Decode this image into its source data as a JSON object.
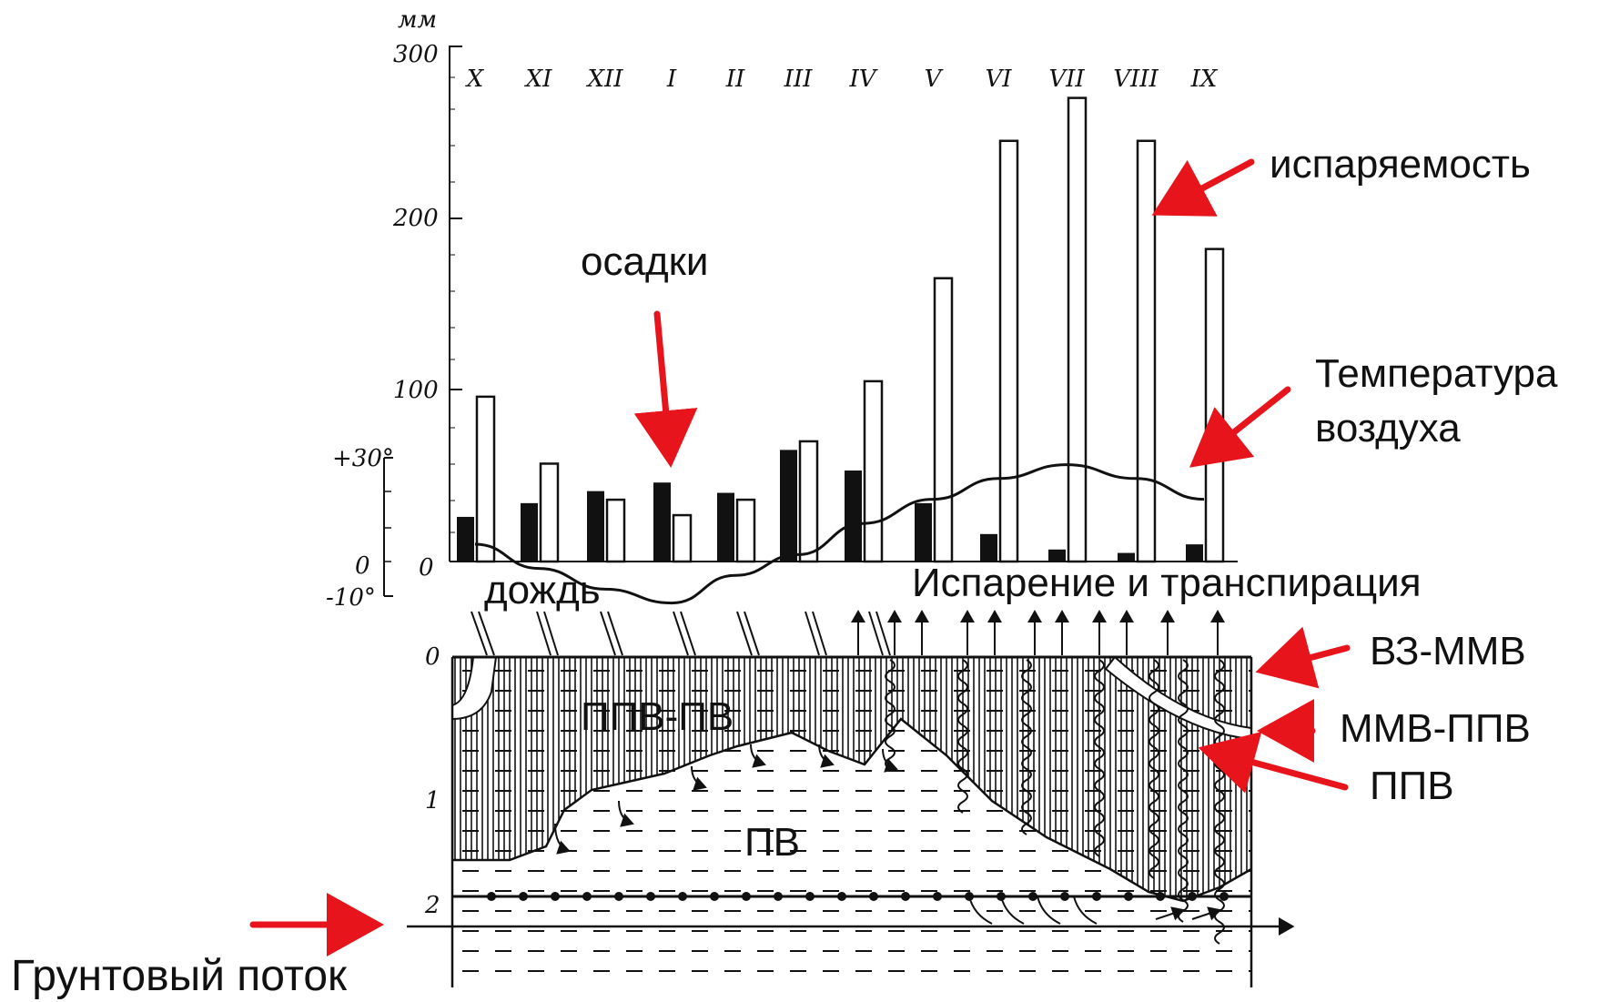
{
  "chart_data": {
    "type": "bar",
    "y_unit": "мм",
    "ylim": [
      0,
      300
    ],
    "y_ticks": [
      "300",
      "200",
      "100",
      "0"
    ],
    "temp_ticks": [
      "+30°",
      "0",
      "-10°"
    ],
    "categories": [
      "X",
      "XI",
      "XII",
      "I",
      "II",
      "III",
      "IV",
      "V",
      "VI",
      "VII",
      "VIII",
      "IX"
    ],
    "series": [
      {
        "values": [
          26,
          34,
          41,
          46,
          40,
          65,
          53,
          34,
          16,
          7,
          5,
          10
        ],
        "color": "#111111"
      },
      {
        "values": [
          96,
          57,
          36,
          27,
          36,
          70,
          105,
          165,
          245,
          270,
          245,
          182
        ],
        "color": "#ffffff"
      }
    ],
    "temperature_line_values": [
      5,
      -2,
      -8,
      -12,
      -4,
      2,
      11,
      18,
      24,
      28,
      24,
      18
    ]
  },
  "labels": {
    "evaporability": "испаряемость",
    "precipitation": "осадки",
    "air_temperature_line1": "Температура",
    "air_temperature_line2": "воздуха",
    "rain": "дождь",
    "evapotranspiration": "Испарение и транспирация",
    "vz_mmv": "ВЗ-ММВ",
    "mmv_ppv": "ММВ-ППВ",
    "ppv": "ППВ",
    "ppv_pv": "ППВ-ПВ",
    "pv": "ПВ",
    "groundwater_flow": "Грунтовый поток"
  },
  "depth_axis": {
    "ticks": [
      "0",
      "1",
      "2"
    ]
  },
  "colors": {
    "arrow": "#e8141b",
    "ink": "#111111"
  }
}
